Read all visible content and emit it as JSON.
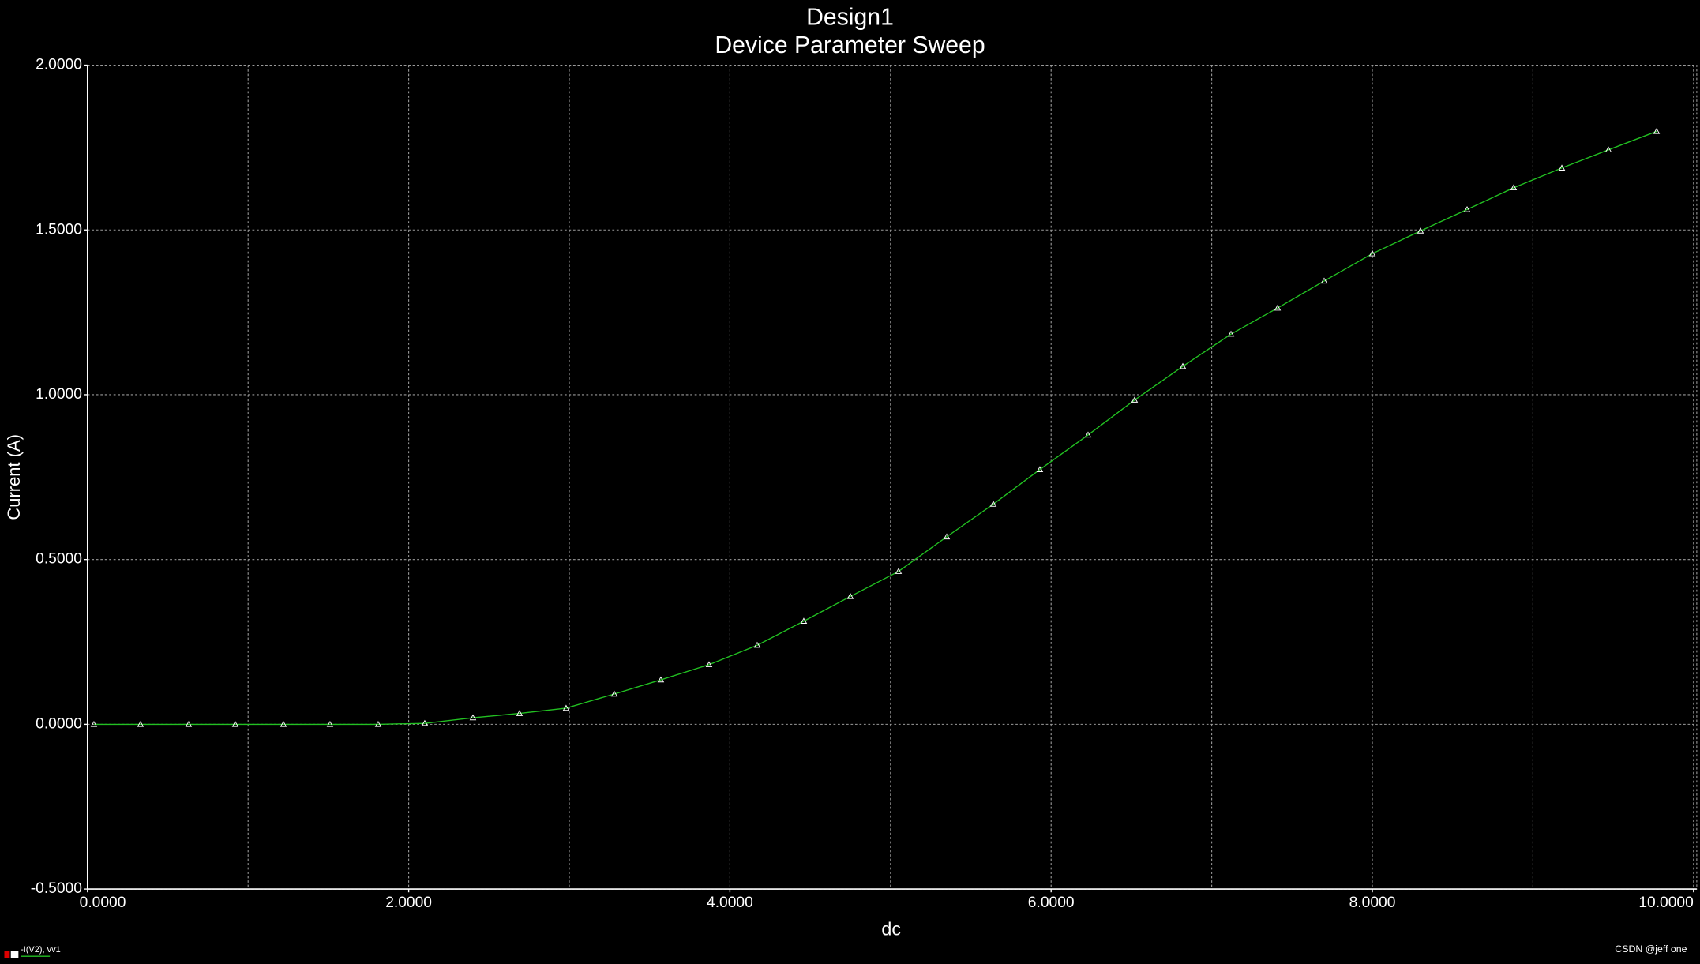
{
  "chart_data": {
    "type": "line",
    "title": "Design1",
    "subtitle": "Device Parameter Sweep",
    "x_label": "dc",
    "y_label": "Current (A)",
    "x": [
      0.04,
      0.33,
      0.63,
      0.92,
      1.22,
      1.51,
      1.81,
      2.1,
      2.4,
      2.69,
      2.98,
      3.28,
      3.57,
      3.87,
      4.17,
      4.46,
      4.75,
      5.05,
      5.35,
      5.64,
      5.93,
      6.23,
      6.52,
      6.82,
      7.12,
      7.41,
      7.7,
      8.0,
      8.3,
      8.59,
      8.88,
      9.18,
      9.47,
      9.77
    ],
    "series": [
      {
        "name": "-I(V2), vv1",
        "color": "#22c022",
        "values": [
          0,
          0,
          0,
          0,
          0,
          0,
          0,
          0.003,
          0.02,
          0.033,
          0.049,
          0.092,
          0.135,
          0.181,
          0.24,
          0.313,
          0.388,
          0.464,
          0.569,
          0.668,
          0.773,
          0.878,
          0.984,
          1.086,
          1.184,
          1.263,
          1.345,
          1.428,
          1.497,
          1.562,
          1.628,
          1.688,
          1.743,
          1.799
        ]
      }
    ],
    "xlim": [
      0,
      10.02
    ],
    "ylim": [
      -0.5,
      2.0
    ],
    "xticks": [
      {
        "value": 0,
        "label": "0.0000"
      },
      {
        "value": 2,
        "label": "2.0000"
      },
      {
        "value": 4,
        "label": "4.0000"
      },
      {
        "value": 6,
        "label": "6.0000"
      },
      {
        "value": 8,
        "label": "8.0000"
      },
      {
        "value": 10,
        "label": "10.0000"
      }
    ],
    "x_minor_grid": [
      1,
      3,
      5,
      7,
      9
    ],
    "yticks": [
      {
        "value": -0.5,
        "label": "-0.5000"
      },
      {
        "value": 0,
        "label": "0.0000"
      },
      {
        "value": 0.5,
        "label": "0.5000"
      },
      {
        "value": 1,
        "label": "1.0000"
      },
      {
        "value": 1.5,
        "label": "1.5000"
      },
      {
        "value": 2,
        "label": "2.0000"
      }
    ],
    "grid": true,
    "marker_color": "#ffffff",
    "watermark": "CSDN @jeff one"
  }
}
